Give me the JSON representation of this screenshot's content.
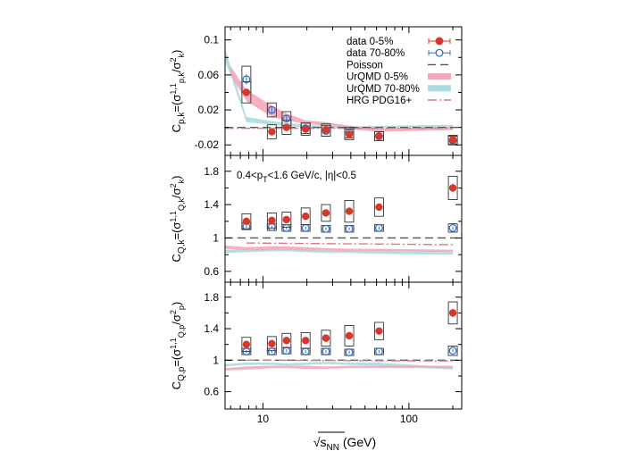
{
  "chart_data": {
    "type": "scatter",
    "x_scale": "log",
    "xlim": [
      5.5,
      230
    ],
    "energies": [
      7.7,
      11.5,
      14.5,
      19.6,
      27,
      39,
      62.4,
      200
    ],
    "x_ticks": [
      {
        "value": 10,
        "label": "10"
      },
      {
        "value": 100,
        "label": "100"
      }
    ],
    "x_minor_ticks": [
      6,
      7,
      8,
      9,
      20,
      30,
      40,
      50,
      60,
      70,
      80,
      90,
      200
    ],
    "xlabel": {
      "prefix": "√",
      "main": "s",
      "sub": "NN",
      "unit": " (GeV)"
    },
    "legend": {
      "placement": "top-right",
      "entries": [
        {
          "key": "data_central",
          "label": "data 0-5%"
        },
        {
          "key": "data_peripheral",
          "label": "data 70-80%"
        },
        {
          "key": "poisson",
          "label": "Poisson"
        },
        {
          "key": "urqmd_central",
          "label": "UrQMD 0-5%"
        },
        {
          "key": "urqmd_peripheral",
          "label": "UrQMD 70-80%"
        },
        {
          "key": "hrg",
          "label": "HRG PDG16+"
        }
      ]
    },
    "colors": {
      "data_central": "#d9372c",
      "data_peripheral": "#3a6fc4",
      "urqmd_central": "#f4a9b8",
      "urqmd_peripheral": "#a9dbe0",
      "hrg": "#d27b86",
      "poisson": "#555555",
      "syst_box": "#333333"
    },
    "panels": [
      {
        "id": "pk",
        "ylabel": {
          "main": "C",
          "sub": "p,k",
          "eq": "=(σ",
          "sup": "1,1",
          "sub2": "p,k",
          "slash": "/σ",
          "sup2": "2",
          "sub3": "k",
          "close": ")"
        },
        "ylim": [
          -0.032,
          0.115
        ],
        "y_ticks": [
          {
            "value": -0.02,
            "label": "-0.02"
          },
          {
            "value": 0.02,
            "label": "0.02"
          },
          {
            "value": 0.06,
            "label": "0.06"
          },
          {
            "value": 0.1,
            "label": "0.1"
          }
        ],
        "poisson": 0,
        "annotation": "",
        "series": {
          "data_central": {
            "values": [
              0.04,
              -0.005,
              0.0,
              -0.002,
              -0.003,
              -0.008,
              -0.01,
              -0.014
            ],
            "errors": [
              0.003,
              0.002,
              0.002,
              0.002,
              0.002,
              0.002,
              0.002,
              0.002
            ],
            "syst": [
              0.012,
              0.008,
              0.008,
              0.007,
              0.007,
              0.006,
              0.005,
              0.005
            ]
          },
          "data_peripheral": {
            "values": [
              0.055,
              0.02,
              0.01,
              -0.001,
              -0.004,
              -0.006,
              -0.01,
              -0.015
            ],
            "errors": [
              0.006,
              0.004,
              0.004,
              0.003,
              0.003,
              0.003,
              0.003,
              0.003
            ],
            "syst": [
              0.015,
              0.008,
              0.008,
              0.006,
              0.006,
              0.006,
              0.005,
              0.005
            ]
          },
          "urqmd_central": {
            "x": [
              6,
              7.7,
              11.5,
              14.5,
              19.6,
              27,
              39,
              62.4,
              200
            ],
            "lo": [
              0.06,
              0.03,
              0.012,
              0.008,
              0.004,
              0.002,
              -0.002,
              -0.005,
              -0.003
            ],
            "hi": [
              0.07,
              0.043,
              0.025,
              0.016,
              0.008,
              0.006,
              0.002,
              -0.001,
              0.001
            ]
          },
          "urqmd_peripheral": {
            "x": [
              5.5,
              6,
              7.7,
              11.5,
              14.5,
              19.6,
              27,
              39,
              62.4,
              200
            ],
            "lo": [
              0.075,
              0.06,
              0.006,
              0.003,
              0.002,
              0.0,
              -0.001,
              -0.002,
              0.0,
              0.0
            ],
            "hi": [
              0.09,
              0.07,
              0.012,
              0.007,
              0.005,
              0.003,
              0.002,
              0.001,
              0.002,
              0.003
            ]
          },
          "hrg": {
            "x": [
              5.5,
              200
            ],
            "values": [
              -0.001,
              -0.001
            ]
          }
        }
      },
      {
        "id": "Qk",
        "ylabel": {
          "main": "C",
          "sub": "Q,k",
          "eq": "=(σ",
          "sup": "1,1",
          "sub2": "Q,k",
          "slash": "/σ",
          "sup2": "2",
          "sub3": "k",
          "close": ")"
        },
        "ylim": [
          0.47,
          1.99
        ],
        "y_ticks": [
          {
            "value": 0.6,
            "label": "0.6"
          },
          {
            "value": 1,
            "label": "1"
          },
          {
            "value": 1.4,
            "label": "1.4"
          },
          {
            "value": 1.8,
            "label": "1.8"
          }
        ],
        "poisson": 1,
        "annotation": "0.4<p<sub>T</sub><1.6 GeV/c, |η|<0.5",
        "series": {
          "data_central": {
            "values": [
              1.2,
              1.21,
              1.22,
              1.26,
              1.3,
              1.32,
              1.37,
              1.6
            ],
            "errors": [
              0.02,
              0.02,
              0.02,
              0.02,
              0.02,
              0.03,
              0.03,
              0.05
            ],
            "syst": [
              0.09,
              0.09,
              0.09,
              0.1,
              0.1,
              0.13,
              0.11,
              0.14
            ]
          },
          "data_peripheral": {
            "values": [
              1.14,
              1.13,
              1.12,
              1.12,
              1.11,
              1.11,
              1.12,
              1.12
            ],
            "errors": [
              0.02,
              0.02,
              0.02,
              0.02,
              0.02,
              0.02,
              0.02,
              0.02
            ],
            "syst": [
              0.04,
              0.04,
              0.04,
              0.04,
              0.04,
              0.04,
              0.04,
              0.05
            ]
          },
          "urqmd_central": {
            "x": [
              5.5,
              7.7,
              11.5,
              14.5,
              19.6,
              27,
              39,
              62.4,
              200
            ],
            "lo": [
              0.87,
              0.85,
              0.86,
              0.86,
              0.85,
              0.85,
              0.84,
              0.84,
              0.83
            ],
            "hi": [
              0.91,
              0.89,
              0.9,
              0.9,
              0.89,
              0.88,
              0.87,
              0.87,
              0.86
            ]
          },
          "urqmd_peripheral": {
            "x": [
              5.5,
              7.7,
              11.5,
              14.5,
              19.6,
              27,
              39,
              62.4,
              200
            ],
            "lo": [
              0.82,
              0.83,
              0.84,
              0.84,
              0.83,
              0.82,
              0.82,
              0.81,
              0.8
            ],
            "hi": [
              0.86,
              0.86,
              0.87,
              0.87,
              0.86,
              0.85,
              0.85,
              0.84,
              0.83
            ]
          },
          "hrg": {
            "x": [
              7.7,
              200
            ],
            "values": [
              0.94,
              0.92
            ]
          }
        }
      },
      {
        "id": "Qp",
        "ylabel": {
          "main": "C",
          "sub": "Q,p",
          "eq": "=(σ",
          "sup": "1,1",
          "sub2": "Q,p",
          "slash": "/σ",
          "sup2": "2",
          "sub3": "p",
          "close": ")"
        },
        "ylim": [
          0.38,
          1.99
        ],
        "y_ticks": [
          {
            "value": 0.6,
            "label": "0.6"
          },
          {
            "value": 1,
            "label": "1"
          },
          {
            "value": 1.4,
            "label": "1.4"
          },
          {
            "value": 1.8,
            "label": "1.8"
          }
        ],
        "poisson": 1,
        "annotation": "",
        "series": {
          "data_central": {
            "values": [
              1.2,
              1.21,
              1.25,
              1.25,
              1.28,
              1.31,
              1.37,
              1.6
            ],
            "errors": [
              0.02,
              0.02,
              0.02,
              0.02,
              0.02,
              0.03,
              0.03,
              0.05
            ],
            "syst": [
              0.09,
              0.09,
              0.09,
              0.1,
              0.1,
              0.13,
              0.11,
              0.14
            ]
          },
          "data_peripheral": {
            "values": [
              1.11,
              1.11,
              1.12,
              1.11,
              1.11,
              1.1,
              1.11,
              1.12
            ],
            "errors": [
              0.02,
              0.02,
              0.02,
              0.02,
              0.02,
              0.02,
              0.02,
              0.02
            ],
            "syst": [
              0.04,
              0.04,
              0.04,
              0.04,
              0.04,
              0.04,
              0.04,
              0.06
            ]
          },
          "urqmd_central": {
            "x": [
              5.5,
              7.7,
              11.5,
              14.5,
              19.6,
              27,
              39,
              62.4,
              200
            ],
            "lo": [
              0.87,
              0.88,
              0.9,
              0.9,
              0.89,
              0.89,
              0.9,
              0.9,
              0.9
            ],
            "hi": [
              0.9,
              0.92,
              0.93,
              0.93,
              0.93,
              0.92,
              0.93,
              0.93,
              0.93
            ]
          },
          "urqmd_peripheral": {
            "x": [
              5.5,
              7.7,
              11.5,
              14.5,
              19.6,
              27,
              39,
              62.4,
              200
            ],
            "lo": [
              0.92,
              0.94,
              0.94,
              0.93,
              0.94,
              0.95,
              0.94,
              0.93,
              0.88
            ],
            "hi": [
              0.95,
              0.97,
              0.97,
              0.96,
              0.97,
              0.98,
              0.97,
              0.97,
              0.91
            ]
          },
          "hrg": {
            "x": [
              7.7,
              200
            ],
            "values": [
              1.0,
              0.99
            ]
          }
        }
      }
    ]
  }
}
